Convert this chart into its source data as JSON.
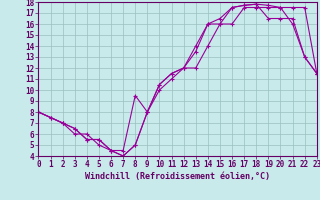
{
  "xlabel": "Windchill (Refroidissement éolien,°C)",
  "bg_color": "#c8eaea",
  "line_color": "#990099",
  "xlim": [
    0,
    23
  ],
  "ylim": [
    4,
    18
  ],
  "yticks": [
    4,
    5,
    6,
    7,
    8,
    9,
    10,
    11,
    12,
    13,
    14,
    15,
    16,
    17,
    18
  ],
  "xticks": [
    0,
    1,
    2,
    3,
    4,
    5,
    6,
    7,
    8,
    9,
    10,
    11,
    12,
    13,
    14,
    15,
    16,
    17,
    18,
    19,
    20,
    21,
    22,
    23
  ],
  "series": [
    {
      "x": [
        0,
        1,
        2,
        3,
        4,
        5,
        6,
        7,
        8,
        9,
        10,
        11,
        12,
        13,
        14,
        15,
        16,
        17,
        18,
        19,
        20,
        21,
        22,
        23
      ],
      "y": [
        8,
        7.5,
        7,
        6.5,
        5.5,
        5.5,
        4.5,
        4.0,
        5.0,
        8.0,
        10.5,
        11.5,
        12.0,
        13.5,
        16.0,
        16.0,
        17.5,
        17.7,
        17.8,
        17.7,
        17.5,
        16.0,
        13.0,
        11.5
      ]
    },
    {
      "x": [
        0,
        1,
        2,
        3,
        4,
        5,
        6,
        7,
        8,
        9,
        10,
        11,
        12,
        13,
        14,
        15,
        16,
        17,
        18,
        19,
        20,
        21,
        22,
        23
      ],
      "y": [
        8,
        7.5,
        7,
        6.5,
        5.5,
        5.5,
        4.5,
        4.0,
        5.0,
        8.0,
        10.5,
        11.5,
        12.0,
        14.0,
        16.0,
        16.5,
        17.5,
        17.7,
        17.8,
        16.5,
        16.5,
        16.5,
        13.0,
        11.5
      ]
    },
    {
      "x": [
        0,
        2,
        3,
        4,
        5,
        6,
        7,
        8,
        9,
        10,
        11,
        12,
        13,
        14,
        15,
        16,
        17,
        18,
        19,
        20,
        21,
        22,
        23
      ],
      "y": [
        8,
        7.0,
        6.0,
        6.0,
        5.0,
        4.5,
        4.5,
        9.5,
        8.0,
        10.0,
        11.0,
        12.0,
        12.0,
        14.0,
        16.0,
        16.0,
        17.5,
        17.5,
        17.5,
        17.5,
        17.5,
        17.5,
        11.5
      ]
    }
  ],
  "xlabel_fontsize": 6,
  "tick_fontsize": 5.5,
  "grid_color": "#9bbfbf",
  "spine_color": "#660066",
  "tick_color": "#660066"
}
